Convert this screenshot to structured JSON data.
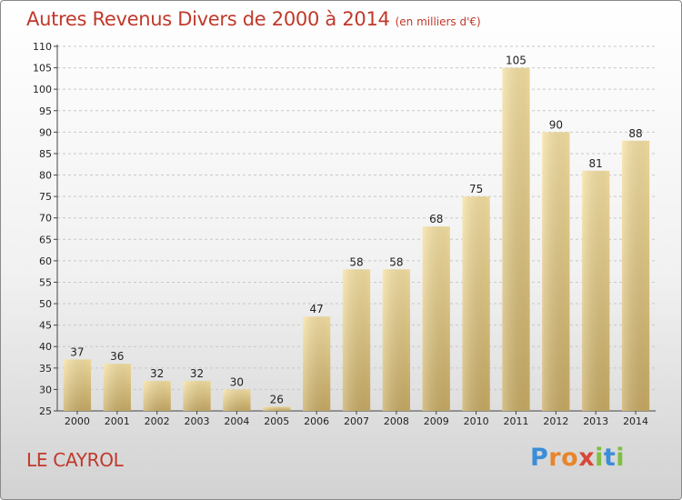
{
  "header": {
    "title": "Autres Revenus Divers de 2000 à 2014",
    "subtitle": "(en milliers d'€)"
  },
  "footer": {
    "location": "LE CAYROL",
    "logo_letters": [
      "P",
      "r",
      "o",
      "x",
      "i",
      "t",
      "i"
    ]
  },
  "colors": {
    "title": "#c0392b",
    "bar_light": "#f7e2a3",
    "bar_dark": "#c9ac64",
    "grid": "#c8c8c8"
  },
  "chart_data": {
    "type": "bar",
    "title": "Autres Revenus Divers de 2000 à 2014",
    "subtitle": "(en milliers d'€)",
    "categories": [
      "2000",
      "2001",
      "2002",
      "2003",
      "2004",
      "2005",
      "2006",
      "2007",
      "2008",
      "2009",
      "2010",
      "2011",
      "2012",
      "2013",
      "2014"
    ],
    "values": [
      37,
      36,
      32,
      32,
      30,
      26,
      47,
      58,
      58,
      68,
      75,
      105,
      90,
      81,
      88
    ],
    "ylim": [
      25,
      110
    ],
    "yticks": [
      25,
      30,
      35,
      40,
      45,
      50,
      55,
      60,
      65,
      70,
      75,
      80,
      85,
      90,
      95,
      100,
      105,
      110
    ],
    "grid": "horizontal dashed",
    "legend": "none"
  }
}
